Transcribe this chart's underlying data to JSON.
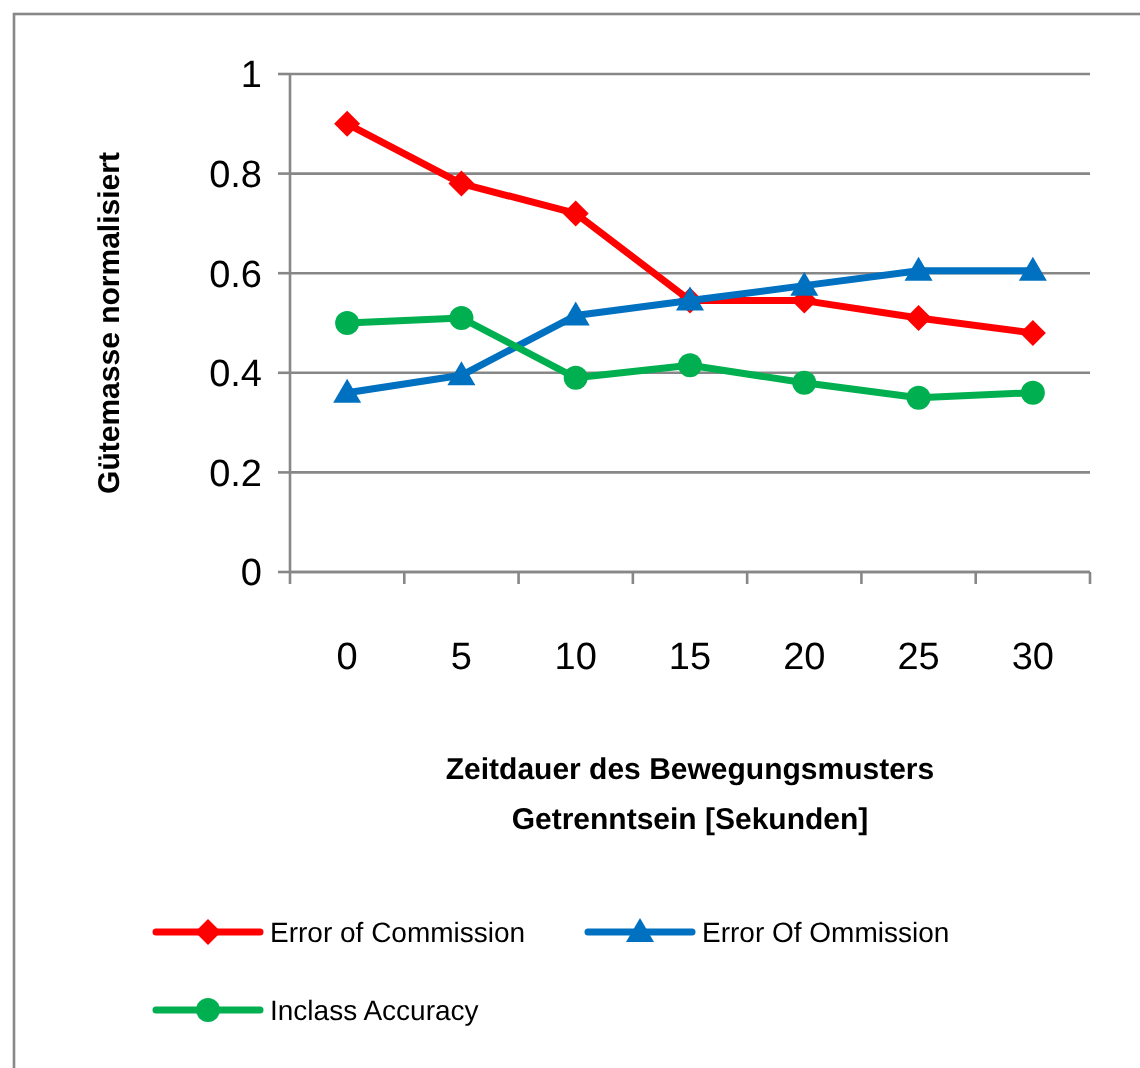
{
  "chart_data": {
    "type": "line",
    "ylabel": "Gütemasse normalisiert",
    "xlabel": "Zeitdauer des Bewegungsmusters\nGetrenntsein [Sekunden]",
    "categories": [
      "0",
      "5",
      "10",
      "15",
      "20",
      "25",
      "30"
    ],
    "series": [
      {
        "name": "Error of Commission",
        "color": "#ff0000",
        "marker": "diamond",
        "values": [
          0.9,
          0.78,
          0.72,
          0.545,
          0.545,
          0.51,
          0.48
        ]
      },
      {
        "name": "Error Of Ommission",
        "color": "#0070c0",
        "marker": "triangle",
        "values": [
          0.36,
          0.395,
          0.515,
          0.545,
          0.575,
          0.605,
          0.605
        ]
      },
      {
        "name": "Inclass Accuracy",
        "color": "#00b050",
        "marker": "circle",
        "values": [
          0.5,
          0.51,
          0.39,
          0.415,
          0.38,
          0.35,
          0.36
        ]
      }
    ],
    "ylim": [
      0,
      1
    ],
    "yticks": [
      0,
      0.2,
      0.4,
      0.6,
      0.8,
      1
    ],
    "grid": "y",
    "legend": "bottom",
    "line_style": "solid"
  }
}
